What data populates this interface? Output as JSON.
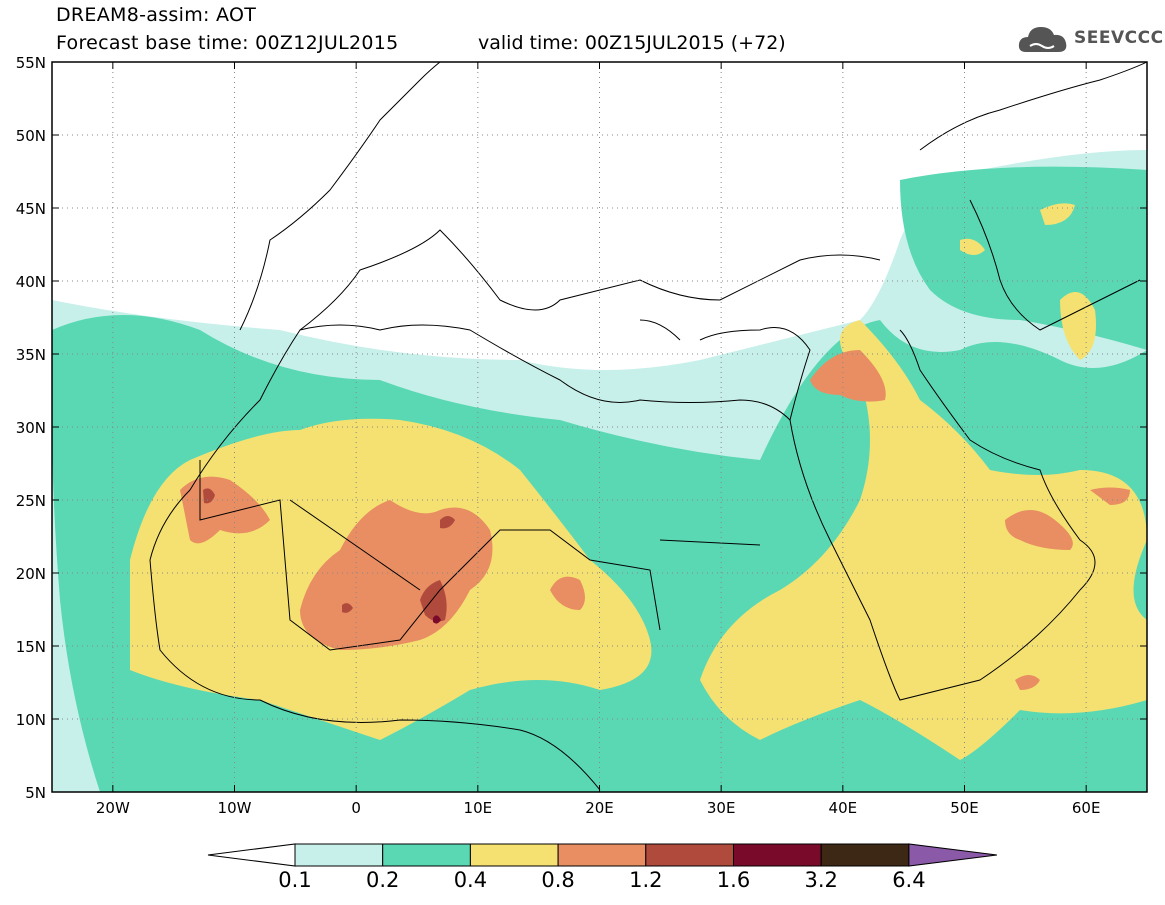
{
  "header": {
    "title": "DREAM8-assim: AOT",
    "base_time": "Forecast base time: 00Z12JUL2015",
    "valid_time": "valid time: 00Z15JUL2015 (+72)"
  },
  "logo": {
    "text": "SEEVCCC",
    "icon": "cloud-icon"
  },
  "map": {
    "lat_labels": [
      "55N",
      "50N",
      "45N",
      "40N",
      "35N",
      "30N",
      "25N",
      "20N",
      "15N",
      "10N",
      "5N"
    ],
    "lon_labels": [
      "20W",
      "10W",
      "0",
      "10E",
      "20E",
      "30E",
      "40E",
      "50E",
      "60E"
    ],
    "lat_values": [
      55,
      50,
      45,
      40,
      35,
      30,
      25,
      20,
      15,
      10,
      5
    ],
    "lon_values": [
      -20,
      -10,
      0,
      10,
      20,
      30,
      40,
      50,
      60
    ],
    "extent": {
      "lon_min": -25,
      "lon_max": 65,
      "lat_min": 5,
      "lat_max": 55
    }
  },
  "colorbar": {
    "labels": [
      "0.1",
      "0.2",
      "0.4",
      "0.8",
      "1.2",
      "1.6",
      "3.2",
      "6.4"
    ],
    "colors": [
      "#c8f0ea",
      "#5ad8b4",
      "#f5e171",
      "#e88e62",
      "#b04a3c",
      "#7a0a2a",
      "#3d2816",
      "#8a5aa8"
    ]
  }
}
